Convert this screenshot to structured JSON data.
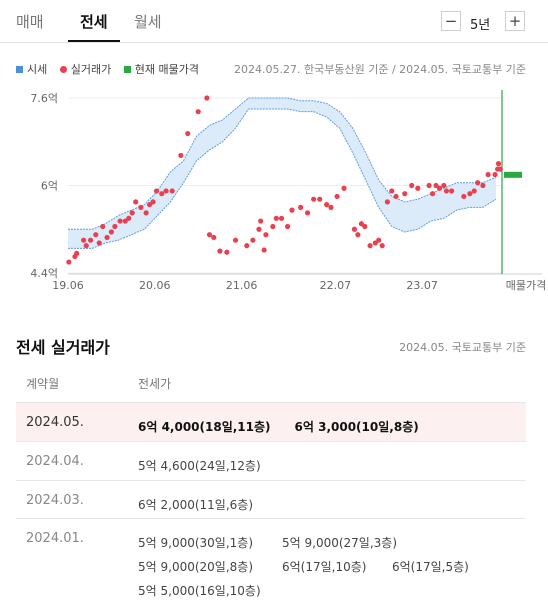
{
  "tabs": {
    "sale": "매매",
    "jeonse": "전세",
    "monthly": "월세"
  },
  "period": {
    "minus": "−",
    "label": "5년",
    "plus": "+"
  },
  "legend": {
    "market": "시세",
    "actual": "실거래가",
    "listing": "현재 매물가격"
  },
  "legend_colors": {
    "market": "#4a90d9",
    "actual": "#e8404f",
    "listing": "#2aa843"
  },
  "chart_source": "2024.05.27. 한국부동산원 기준 / 2024.05. 국토교통부 기준",
  "chart_data": {
    "type": "scatter",
    "y_ticks": [
      "7.6억",
      "6억",
      "4.4억"
    ],
    "ylim": [
      44000,
      76000
    ],
    "x_ticks": [
      "19.06",
      "20.06",
      "21.06",
      "22.07",
      "23.07",
      "매물가격"
    ],
    "x_tick_years": [
      2019.42,
      2020.42,
      2021.42,
      2022.5,
      2023.5
    ],
    "xlim": [
      2019.42,
      2024.42
    ],
    "market_band": {
      "x": [
        2019.42,
        2019.55,
        2019.7,
        2019.85,
        2020.0,
        2020.15,
        2020.3,
        2020.45,
        2020.6,
        2020.75,
        2020.9,
        2021.05,
        2021.2,
        2021.35,
        2021.5,
        2021.65,
        2021.8,
        2021.95,
        2022.1,
        2022.25,
        2022.4,
        2022.55,
        2022.7,
        2022.85,
        2023.0,
        2023.15,
        2023.3,
        2023.45,
        2023.6,
        2023.75,
        2023.9,
        2024.05,
        2024.2,
        2024.35
      ],
      "upper": [
        52000,
        52000,
        52000,
        53000,
        54500,
        55500,
        56500,
        59000,
        62500,
        64500,
        69000,
        71000,
        72000,
        74000,
        76000,
        76000,
        76000,
        76000,
        75500,
        75500,
        75000,
        73500,
        70500,
        66000,
        61000,
        58000,
        57000,
        57500,
        58500,
        59500,
        60500,
        60500,
        60500,
        61500
      ],
      "lower": [
        48500,
        48500,
        48500,
        49500,
        50000,
        51000,
        52000,
        54500,
        57000,
        60500,
        64500,
        66500,
        68000,
        70500,
        74000,
        74000,
        74000,
        74000,
        73500,
        73500,
        72500,
        70500,
        66000,
        61000,
        56000,
        52500,
        51500,
        52000,
        53500,
        54000,
        55500,
        56000,
        56000,
        57500
      ]
    },
    "actual_points": [
      [
        2019.43,
        46000
      ],
      [
        2019.5,
        47000
      ],
      [
        2019.52,
        47600
      ],
      [
        2019.6,
        50000
      ],
      [
        2019.63,
        49000
      ],
      [
        2019.68,
        50000
      ],
      [
        2019.74,
        51000
      ],
      [
        2019.78,
        49500
      ],
      [
        2019.82,
        52500
      ],
      [
        2019.87,
        50500
      ],
      [
        2019.92,
        51500
      ],
      [
        2019.96,
        52500
      ],
      [
        2020.02,
        53500
      ],
      [
        2020.08,
        53500
      ],
      [
        2020.12,
        54000
      ],
      [
        2020.16,
        55000
      ],
      [
        2020.2,
        57000
      ],
      [
        2020.26,
        56000
      ],
      [
        2020.32,
        55000
      ],
      [
        2020.36,
        56500
      ],
      [
        2020.4,
        57000
      ],
      [
        2020.44,
        59000
      ],
      [
        2020.5,
        58500
      ],
      [
        2020.55,
        59000
      ],
      [
        2020.62,
        59000
      ],
      [
        2020.72,
        65500
      ],
      [
        2020.8,
        69500
      ],
      [
        2020.92,
        73500
      ],
      [
        2021.02,
        76000
      ],
      [
        2021.05,
        51000
      ],
      [
        2021.1,
        50500
      ],
      [
        2021.17,
        48000
      ],
      [
        2021.25,
        47800
      ],
      [
        2021.35,
        50000
      ],
      [
        2021.48,
        49000
      ],
      [
        2021.55,
        50000
      ],
      [
        2021.62,
        52000
      ],
      [
        2021.64,
        53500
      ],
      [
        2021.68,
        48200
      ],
      [
        2021.7,
        51000
      ],
      [
        2021.78,
        52500
      ],
      [
        2021.82,
        54000
      ],
      [
        2021.88,
        54000
      ],
      [
        2021.95,
        52500
      ],
      [
        2022.0,
        55500
      ],
      [
        2022.1,
        56000
      ],
      [
        2022.18,
        55000
      ],
      [
        2022.25,
        57500
      ],
      [
        2022.32,
        57500
      ],
      [
        2022.4,
        56500
      ],
      [
        2022.45,
        56000
      ],
      [
        2022.52,
        58000
      ],
      [
        2022.6,
        59500
      ],
      [
        2022.72,
        52000
      ],
      [
        2022.76,
        51000
      ],
      [
        2022.8,
        53000
      ],
      [
        2022.84,
        52500
      ],
      [
        2022.9,
        49000
      ],
      [
        2022.96,
        49500
      ],
      [
        2023.0,
        50000
      ],
      [
        2023.04,
        49000
      ],
      [
        2023.1,
        57000
      ],
      [
        2023.15,
        59000
      ],
      [
        2023.2,
        58000
      ],
      [
        2023.3,
        58500
      ],
      [
        2023.38,
        60000
      ],
      [
        2023.45,
        59500
      ],
      [
        2023.58,
        60000
      ],
      [
        2023.62,
        58500
      ],
      [
        2023.66,
        60000
      ],
      [
        2023.7,
        59500
      ],
      [
        2023.75,
        60000
      ],
      [
        2023.78,
        59000
      ],
      [
        2023.84,
        59000
      ],
      [
        2023.98,
        58000
      ],
      [
        2024.05,
        58500
      ],
      [
        2024.1,
        59000
      ],
      [
        2024.14,
        60500
      ],
      [
        2024.2,
        60000
      ],
      [
        2024.26,
        62000
      ],
      [
        2024.34,
        62000
      ],
      [
        2024.37,
        63000
      ],
      [
        2024.38,
        64000
      ],
      [
        2024.4,
        63000
      ]
    ],
    "listing_range": [
      61500,
      62500
    ]
  },
  "section": {
    "title": "전세 실거래가",
    "source": "2024.05. 국토교통부 기준"
  },
  "table": {
    "col_date": "계약월",
    "col_price": "전세가",
    "rows": [
      {
        "date": "2024.05.",
        "items": [
          "6억 4,000(18일,11층)",
          "6억 3,000(10일,8층)"
        ]
      },
      {
        "date": "2024.04.",
        "items": [
          "5억 4,600(24일,12층)"
        ]
      },
      {
        "date": "2024.03.",
        "items": [
          "6억 2,000(11일,6층)"
        ]
      },
      {
        "date": "2024.01.",
        "items": [
          "5억 9,000(30일,1층)",
          "5억 9,000(27일,3층)",
          "5억 9,000(20일,8층)",
          "6억(17일,10층)",
          "6억(17일,5층)",
          "5억 5,000(16일,10층)"
        ]
      }
    ]
  }
}
